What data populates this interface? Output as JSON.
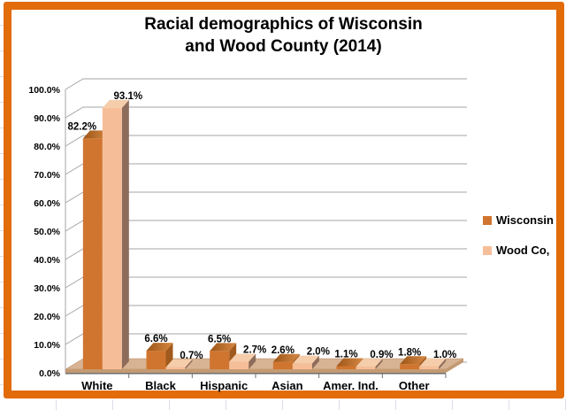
{
  "chart_data": {
    "type": "bar",
    "style": "3d-clustered-column",
    "title": "Racial demographics of Wisconsin and Wood County (2014)",
    "title_lines": [
      "Racial demographics of Wisconsin",
      "and Wood County (2014)"
    ],
    "categories": [
      "White",
      "Black",
      "Hispanic",
      "Asian",
      "Amer. Ind.",
      "Other"
    ],
    "series": [
      {
        "name": "Wisconsin",
        "values": [
          82.2,
          6.6,
          6.5,
          2.6,
          1.1,
          1.8
        ],
        "labels": [
          "82.2%",
          "6.6%",
          "6.5%",
          "2.6%",
          "1.1%",
          "1.8%"
        ]
      },
      {
        "name": "Wood Co,",
        "values": [
          93.1,
          0.7,
          2.7,
          2.0,
          0.9,
          1.0
        ],
        "labels": [
          "93.1%",
          "0.7%",
          "2.7%",
          "2.0%",
          "0.9%",
          "1.0%"
        ]
      }
    ],
    "ylim": [
      0,
      100
    ],
    "ytick_step": 10,
    "ytick_labels": [
      "0.0%",
      "10.0%",
      "20.0%",
      "30.0%",
      "40.0%",
      "50.0%",
      "60.0%",
      "70.0%",
      "80.0%",
      "90.0%",
      "100.0%"
    ],
    "grid": true,
    "legend_position": "right"
  },
  "colors": {
    "frame_border": "#E26B0A",
    "background": "#FFFFFF",
    "wisconsin_front": "#D0752F",
    "wisconsin_top_dark": "#9B5517",
    "wisconsin_top_light": "#D78843",
    "wisconsin_side": "#A15A1E",
    "woodco_front": "#F6BE98",
    "woodco_top": "#F5CDAB",
    "woodco_side": "#8D6C5B",
    "floor_top": "#D7B393",
    "floor_edge": "#C39A73",
    "gridline": "#A6A6A6",
    "axis_line": "#6F6F6F",
    "text": "#000000"
  }
}
